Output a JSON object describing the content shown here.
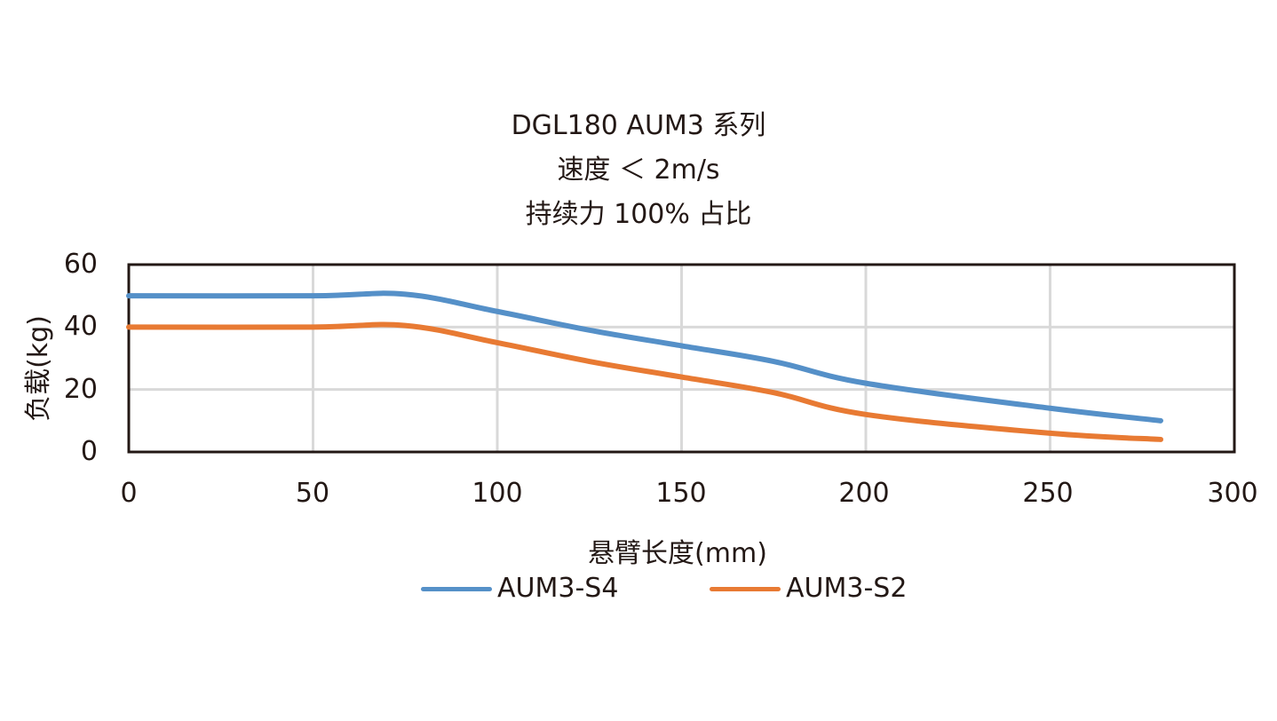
{
  "chart_data": {
    "type": "line",
    "title": "DGL180 AUM3 系列",
    "subtitle": [
      "速度 ＜ 2m/s",
      "持续力 100% 占比"
    ],
    "xlabel": "悬臂长度(mm)",
    "ylabel": "负载(kg)",
    "xlim": [
      0,
      300
    ],
    "ylim": [
      0,
      60
    ],
    "xticks": [
      "0",
      "50",
      "100",
      "150",
      "200",
      "250",
      "300"
    ],
    "yticks": [
      "0",
      "20",
      "40",
      "60"
    ],
    "grid": true,
    "legend_position": "bottom",
    "x": [
      0,
      50,
      75,
      100,
      125,
      150,
      175,
      200,
      250,
      280
    ],
    "series": [
      {
        "name": "AUM3-S4",
        "color": "#5590C8",
        "values": [
          50,
          50,
          50.5,
          45,
          39,
          34,
          29,
          22,
          14,
          10
        ]
      },
      {
        "name": "AUM3-S2",
        "color": "#E87A33",
        "values": [
          40,
          40,
          40.5,
          35,
          29,
          24,
          19,
          12,
          6,
          4
        ]
      }
    ]
  },
  "title": {
    "line1": "DGL180 AUM3 系列",
    "line2": "速度 ＜ 2m/s",
    "line3": "持续力 100% 占比"
  },
  "axes": {
    "xlabel": "悬臂长度(mm)",
    "ylabel": "负载(kg)",
    "yticks": [
      "0",
      "20",
      "40",
      "60"
    ],
    "xticks": [
      "0",
      "50",
      "100",
      "150",
      "200",
      "250",
      "300"
    ]
  },
  "legend": [
    {
      "label": "AUM3-S4",
      "color": "#5590C8"
    },
    {
      "label": "AUM3-S2",
      "color": "#E87A33"
    }
  ]
}
